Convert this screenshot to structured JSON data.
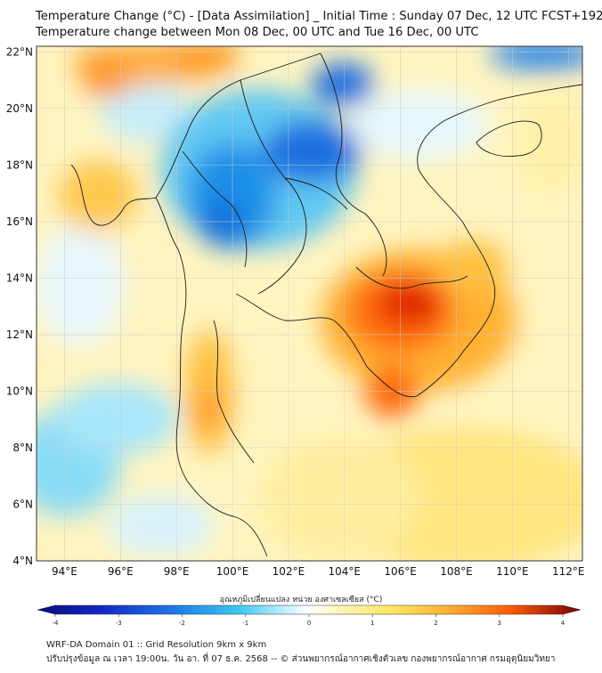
{
  "header": {
    "title_line1": "Temperature Change (°C) - [Data Assimilation] _ Initial Time : Sunday 07 Dec, 12 UTC FCST+192",
    "title_line2": "Temperature change between Mon 08 Dec, 00 UTC and Tue 16 Dec, 00 UTC"
  },
  "map": {
    "lat_labels": [
      "22°N",
      "20°N",
      "18°N",
      "16°N",
      "14°N",
      "12°N",
      "10°N",
      "8°N",
      "6°N",
      "4°N"
    ],
    "lat_values": [
      22,
      20,
      18,
      16,
      14,
      12,
      10,
      8,
      6,
      4
    ],
    "lon_labels": [
      "94°E",
      "96°E",
      "98°E",
      "100°E",
      "102°E",
      "104°E",
      "106°E",
      "108°E",
      "110°E",
      "112°E"
    ],
    "lon_values": [
      94,
      96,
      98,
      100,
      102,
      104,
      106,
      108,
      110,
      112
    ],
    "lon_range": [
      93,
      112.5
    ],
    "lat_range": [
      4,
      22.2
    ]
  },
  "colorbar": {
    "label": "อุณหภูมิเปลี่ยนแปลง หน่วย องศาเซลเซียส (°C)",
    "ticks": [
      "-4",
      "-3",
      "-2",
      "-1",
      "0",
      "1",
      "2",
      "3",
      "4"
    ],
    "range": [
      -4,
      4
    ]
  },
  "footer": {
    "line1": "WRF-DA Domain 01 :: Grid Resolution 9km x 9km",
    "line2": "ปรับปรุงข้อมูล ณ เวลา 19:00น. วัน อา. ที่ 07 ธ.ค. 2568 -- © ส่วนพยากรณ์อากาศเชิงตัวเลข กองพยากรณ์อากาศ กรมอุตุนิยมวิทยา"
  },
  "colors": {
    "cold_strong": "#0a0a7a",
    "cold": "#1e78e6",
    "cool": "#3cc8f0",
    "neutral": "#ffffff",
    "warm": "#ffe664",
    "hot": "#ff9614",
    "hot_strong": "#c80000"
  }
}
